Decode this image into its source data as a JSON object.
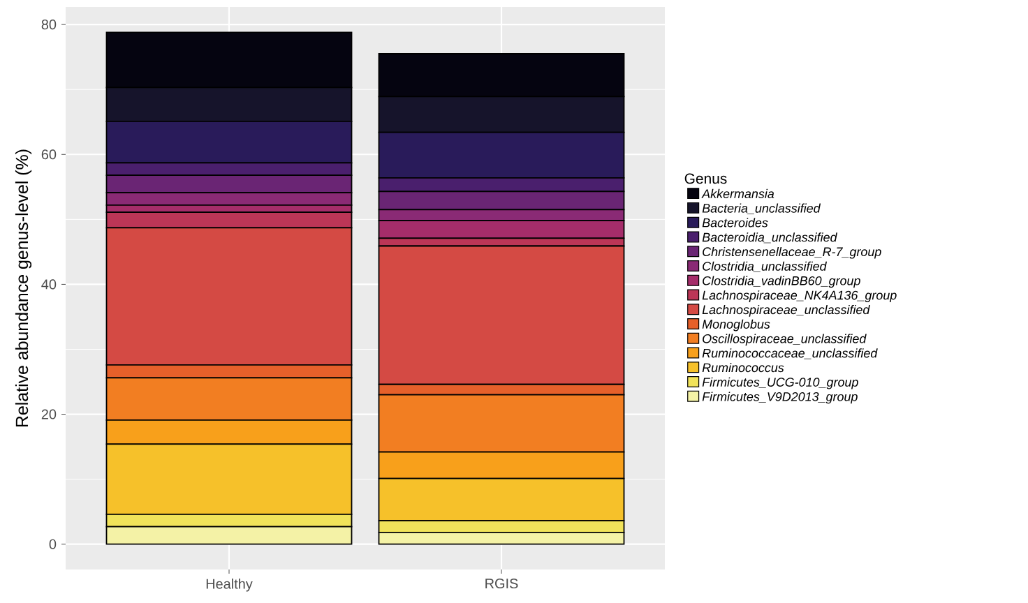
{
  "chart_data": {
    "type": "bar",
    "stacked": true,
    "ylabel": "Relative abundance genus-level (%)",
    "legend_title": "Genus",
    "legend": "right",
    "grid": true,
    "categories": [
      "Healthy",
      "RGIS"
    ],
    "ylim": [
      -3.9,
      82.7
    ],
    "yticks": [
      0,
      20,
      40,
      60,
      80
    ],
    "series": [
      {
        "name": "Firmicutes_V9D2013_group",
        "color": "#f4f2a6",
        "values": [
          2.7,
          1.8
        ]
      },
      {
        "name": "Firmicutes_UCG-010_group",
        "color": "#f1e35a",
        "values": [
          1.9,
          1.8
        ]
      },
      {
        "name": "Ruminococcus",
        "color": "#f6c12a",
        "values": [
          10.8,
          6.5
        ]
      },
      {
        "name": "Ruminococcaceae_unclassified",
        "color": "#f8a01b",
        "values": [
          3.7,
          4.1
        ]
      },
      {
        "name": "Oscillospiraceae_unclassified",
        "color": "#f27e22",
        "values": [
          6.5,
          8.8
        ]
      },
      {
        "name": "Monoglobus",
        "color": "#e6602a",
        "values": [
          2.0,
          1.6
        ]
      },
      {
        "name": "Lachnospiraceae_unclassified",
        "color": "#d44a44",
        "values": [
          21.1,
          21.3
        ]
      },
      {
        "name": "Lachnospiraceae_NK4A136_group",
        "color": "#bc3657",
        "values": [
          2.4,
          1.2
        ]
      },
      {
        "name": "Clostridia_vadinBB60_group",
        "color": "#a52d6a",
        "values": [
          1.1,
          2.7
        ]
      },
      {
        "name": "Clostridia_unclassified",
        "color": "#8a2a75",
        "values": [
          1.9,
          1.7
        ]
      },
      {
        "name": "Christensenellaceae_R-7_group",
        "color": "#6a2574",
        "values": [
          2.7,
          2.8
        ]
      },
      {
        "name": "Bacteroidia_unclassified",
        "color": "#4a1f6d",
        "values": [
          1.9,
          2.1
        ]
      },
      {
        "name": "Bacteroides",
        "color": "#291b5a",
        "values": [
          6.4,
          7.0
        ]
      },
      {
        "name": "Bacteria_unclassified",
        "color": "#16142b",
        "values": [
          5.2,
          5.5
        ]
      },
      {
        "name": "Akkermansia",
        "color": "#050410",
        "values": [
          8.5,
          6.6
        ]
      }
    ]
  }
}
